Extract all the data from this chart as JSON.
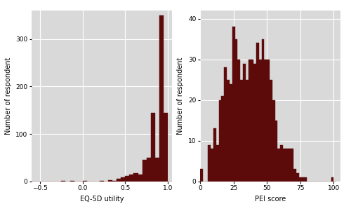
{
  "bar_color": "#5C0A0A",
  "bar_edge_color": "#5C0A0A",
  "background_color": "#D9D9D9",
  "fig_background": "#FFFFFF",
  "grid_color": "#FFFFFF",
  "eq5d_xlabel": "EQ-5D utility",
  "eq5d_ylabel": "Number of respondent",
  "eq5d_xlim": [
    -0.6,
    1.05
  ],
  "eq5d_ylim": [
    0,
    360
  ],
  "eq5d_xticks": [
    -0.5,
    0.0,
    0.5,
    1.0
  ],
  "eq5d_yticks": [
    0,
    100,
    200,
    300
  ],
  "eq5d_bin_edges": [
    -0.6,
    -0.55,
    -0.5,
    -0.45,
    -0.4,
    -0.35,
    -0.3,
    -0.25,
    -0.2,
    -0.15,
    -0.1,
    -0.05,
    0.0,
    0.05,
    0.1,
    0.15,
    0.2,
    0.25,
    0.3,
    0.35,
    0.4,
    0.45,
    0.5,
    0.55,
    0.6,
    0.65,
    0.7,
    0.75,
    0.8,
    0.85,
    0.9,
    0.95,
    1.0,
    1.05
  ],
  "eq5d_heights": [
    0,
    0,
    0,
    0,
    0,
    0,
    0,
    1,
    0,
    1,
    0,
    0,
    1,
    0,
    0,
    0,
    1,
    0,
    3,
    2,
    5,
    8,
    12,
    15,
    18,
    14,
    45,
    50,
    145,
    50,
    350,
    145,
    0
  ],
  "pei_xlabel": "PEI score",
  "pei_ylabel": "Number of respondent",
  "pei_xlim": [
    0,
    105
  ],
  "pei_ylim": [
    0,
    42
  ],
  "pei_xticks": [
    0,
    25,
    50,
    75,
    100
  ],
  "pei_yticks": [
    0,
    10,
    20,
    30,
    40
  ],
  "pei_bin_edges": [
    0,
    2,
    4,
    6,
    8,
    10,
    12,
    14,
    16,
    18,
    20,
    22,
    24,
    26,
    28,
    30,
    32,
    34,
    36,
    38,
    40,
    42,
    44,
    46,
    48,
    50,
    52,
    54,
    56,
    58,
    60,
    62,
    64,
    66,
    68,
    70,
    72,
    74,
    76,
    78,
    80,
    82,
    84,
    86,
    88,
    90,
    92,
    94,
    96,
    98,
    100,
    102
  ],
  "pei_heights": [
    3,
    0,
    0,
    9,
    8,
    13,
    9,
    20,
    21,
    28,
    25,
    24,
    38,
    35,
    30,
    25,
    29,
    25,
    30,
    30,
    29,
    34,
    30,
    35,
    30,
    30,
    25,
    20,
    15,
    8,
    9,
    8,
    8,
    8,
    8,
    3,
    2,
    1,
    1,
    1,
    0,
    0,
    0,
    0,
    0,
    0,
    0,
    0,
    0,
    1,
    0
  ]
}
